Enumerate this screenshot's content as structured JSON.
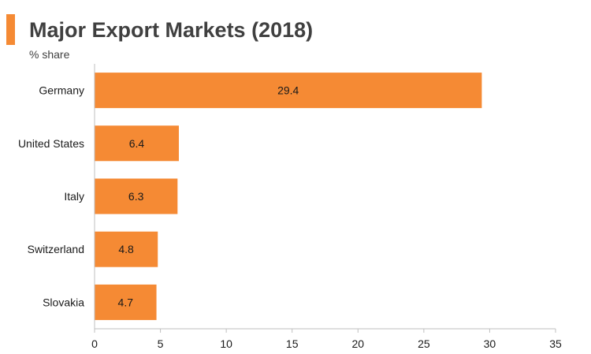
{
  "header": {
    "title": "Major Export Markets (2018)",
    "subtitle": "% share"
  },
  "colors": {
    "accent": "#F58A34",
    "bar": "#F58A34",
    "axis": "#BFBFBF",
    "text": "#1A1A1A"
  },
  "chart_data": {
    "type": "bar",
    "orientation": "horizontal",
    "title": "Major Export Markets (2018)",
    "subtitle": "% share",
    "xlabel": "",
    "ylabel": "",
    "categories": [
      "Germany",
      "United States",
      "Italy",
      "Switzerland",
      "Slovakia"
    ],
    "values": [
      29.4,
      6.4,
      6.3,
      4.8,
      4.7
    ],
    "data_labels": [
      "29.4",
      "6.4",
      "6.3",
      "4.8",
      "4.7"
    ],
    "xlim": [
      0,
      35
    ],
    "xticks": [
      0,
      5,
      10,
      15,
      20,
      25,
      30,
      35
    ],
    "grid": false,
    "legend": "none"
  }
}
